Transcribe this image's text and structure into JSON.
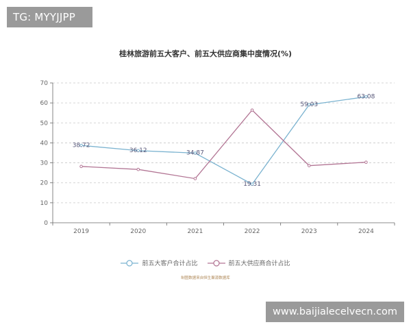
{
  "watermark_tag": "TG: MYYJJPP",
  "site_label": "www.baijialecelvecn.com",
  "source_note": "制图数据来自恒生聚源数据库",
  "chart_data": {
    "type": "line",
    "title": "桂林旅游前五大客户、前五大供应商集中度情况(%)",
    "xlabel": "",
    "ylabel": "",
    "categories": [
      "2019",
      "2020",
      "2021",
      "2022",
      "2023",
      "2024"
    ],
    "ylim": [
      0,
      70
    ],
    "yticks": [
      "0",
      "10",
      "20",
      "30",
      "40",
      "50",
      "60",
      "70"
    ],
    "grid": true,
    "legend_position": "bottom",
    "series": [
      {
        "name": "前五大客户合计占比",
        "color": "#7bb3d0",
        "values": [
          38.72,
          36.12,
          34.87,
          19.31,
          59.03,
          63.08
        ],
        "labels": [
          "38.72",
          "36.12",
          "34.87",
          "19.31",
          "59.03",
          "63.08"
        ]
      },
      {
        "name": "前五大供应商合计占比",
        "color": "#b27594",
        "values": [
          28.2,
          26.7,
          22.1,
          56.4,
          28.6,
          30.3
        ],
        "labels": []
      }
    ]
  }
}
